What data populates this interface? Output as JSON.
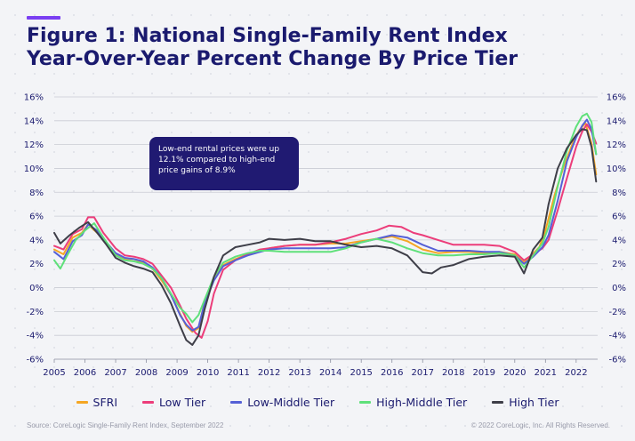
{
  "header": {
    "title_line1": "Figure 1: National Single-Family Rent Index",
    "title_line2": "Year-Over-Year Percent Change By Price Tier"
  },
  "annotation": {
    "text": "Low-end rental prices were up 12.1% compared to high-end price gains of 8.9%"
  },
  "footer": {
    "source": "Source: CoreLogic Single-Family Rent Index, September 2022",
    "copyright": "© 2022 CoreLogic, Inc. All Rights Reserved."
  },
  "colors": {
    "title": "#1a1a6e",
    "accent": "#7a3ff2",
    "annotation_bg": "#201a72",
    "SFRI": "#f5a623",
    "Low Tier": "#ec3d7a",
    "Low-Middle Tier": "#5560d6",
    "High-Middle Tier": "#5fe07a",
    "High Tier": "#3e3e48"
  },
  "chart_data": {
    "type": "line",
    "title": "Figure 1: National Single-Family Rent Index Year-Over-Year Percent Change By Price Tier",
    "xlabel": "",
    "ylabel": "",
    "xlim": [
      2005,
      2022.7
    ],
    "ylim": [
      -6,
      16
    ],
    "y_ticks": [
      "-6%",
      "-4%",
      "-2%",
      "0%",
      "2%",
      "4%",
      "6%",
      "8%",
      "10%",
      "12%",
      "14%",
      "16%"
    ],
    "x_ticks": [
      "2005",
      "2006",
      "2007",
      "2008",
      "2009",
      "2010",
      "2011",
      "2012",
      "2013",
      "2014",
      "2015",
      "2016",
      "2017",
      "2018",
      "2019",
      "2020",
      "2021",
      "2022"
    ],
    "grid": "horizontal",
    "legend_position": "bottom",
    "series": [
      {
        "name": "SFRI",
        "points": [
          [
            2005,
            3.2
          ],
          [
            2005.3,
            2.8
          ],
          [
            2005.6,
            4.2
          ],
          [
            2005.9,
            4.6
          ],
          [
            2006.1,
            5.3
          ],
          [
            2006.4,
            4.6
          ],
          [
            2006.7,
            3.8
          ],
          [
            2007,
            2.8
          ],
          [
            2007.3,
            2.4
          ],
          [
            2007.6,
            2.4
          ],
          [
            2007.9,
            2.1
          ],
          [
            2008.2,
            1.6
          ],
          [
            2008.5,
            0.6
          ],
          [
            2008.8,
            -0.6
          ],
          [
            2009.1,
            -2.2
          ],
          [
            2009.3,
            -3.2
          ],
          [
            2009.5,
            -3.7
          ],
          [
            2009.7,
            -3.4
          ],
          [
            2009.9,
            -1.2
          ],
          [
            2010.2,
            0.9
          ],
          [
            2010.5,
            1.9
          ],
          [
            2010.9,
            2.4
          ],
          [
            2011.3,
            2.8
          ],
          [
            2011.7,
            3.1
          ],
          [
            2012,
            3.3
          ],
          [
            2012.5,
            3.5
          ],
          [
            2013,
            3.6
          ],
          [
            2013.5,
            3.6
          ],
          [
            2014,
            3.7
          ],
          [
            2014.5,
            3.7
          ],
          [
            2015,
            3.9
          ],
          [
            2015.5,
            4.1
          ],
          [
            2016,
            4.3
          ],
          [
            2016.5,
            3.9
          ],
          [
            2017,
            3.2
          ],
          [
            2017.5,
            2.9
          ],
          [
            2018,
            3
          ],
          [
            2018.5,
            3
          ],
          [
            2019,
            2.9
          ],
          [
            2019.5,
            3
          ],
          [
            2020,
            2.8
          ],
          [
            2020.3,
            2.1
          ],
          [
            2020.5,
            2.6
          ],
          [
            2020.8,
            3.4
          ],
          [
            2021,
            4.8
          ],
          [
            2021.3,
            7.8
          ],
          [
            2021.6,
            10.2
          ],
          [
            2021.9,
            12.2
          ],
          [
            2022.1,
            13.2
          ],
          [
            2022.3,
            13.8
          ],
          [
            2022.5,
            12.1
          ],
          [
            2022.65,
            9.5
          ]
        ]
      },
      {
        "name": "Low Tier",
        "points": [
          [
            2005,
            3.5
          ],
          [
            2005.3,
            3.2
          ],
          [
            2005.6,
            4.5
          ],
          [
            2005.9,
            4.9
          ],
          [
            2006.1,
            5.9
          ],
          [
            2006.3,
            5.9
          ],
          [
            2006.6,
            4.6
          ],
          [
            2007,
            3.3
          ],
          [
            2007.3,
            2.7
          ],
          [
            2007.6,
            2.6
          ],
          [
            2007.9,
            2.4
          ],
          [
            2008.2,
            2
          ],
          [
            2008.5,
            1
          ],
          [
            2008.8,
            0
          ],
          [
            2009.1,
            -1.5
          ],
          [
            2009.3,
            -2.6
          ],
          [
            2009.6,
            -3.8
          ],
          [
            2009.8,
            -4.2
          ],
          [
            2010,
            -2.8
          ],
          [
            2010.2,
            -0.5
          ],
          [
            2010.5,
            1.5
          ],
          [
            2010.9,
            2.3
          ],
          [
            2011.3,
            2.8
          ],
          [
            2011.7,
            3.2
          ],
          [
            2012,
            3.3
          ],
          [
            2012.5,
            3.5
          ],
          [
            2013,
            3.6
          ],
          [
            2013.5,
            3.6
          ],
          [
            2014,
            3.8
          ],
          [
            2014.5,
            4.1
          ],
          [
            2015,
            4.5
          ],
          [
            2015.5,
            4.8
          ],
          [
            2015.9,
            5.2
          ],
          [
            2016.3,
            5.1
          ],
          [
            2016.7,
            4.6
          ],
          [
            2017,
            4.4
          ],
          [
            2017.5,
            4
          ],
          [
            2018,
            3.6
          ],
          [
            2018.5,
            3.6
          ],
          [
            2019,
            3.6
          ],
          [
            2019.5,
            3.5
          ],
          [
            2020,
            3
          ],
          [
            2020.3,
            2.3
          ],
          [
            2020.6,
            2.8
          ],
          [
            2020.9,
            3.3
          ],
          [
            2021.1,
            4
          ],
          [
            2021.4,
            6.5
          ],
          [
            2021.7,
            9.2
          ],
          [
            2022,
            11.8
          ],
          [
            2022.2,
            13.1
          ],
          [
            2022.35,
            13.7
          ],
          [
            2022.5,
            13.1
          ],
          [
            2022.65,
            12.1
          ]
        ]
      },
      {
        "name": "Low-Middle Tier",
        "points": [
          [
            2005,
            3
          ],
          [
            2005.3,
            2.4
          ],
          [
            2005.6,
            3.9
          ],
          [
            2005.9,
            4.4
          ],
          [
            2006.1,
            5.3
          ],
          [
            2006.4,
            4.8
          ],
          [
            2006.7,
            3.8
          ],
          [
            2007,
            2.9
          ],
          [
            2007.3,
            2.5
          ],
          [
            2007.6,
            2.4
          ],
          [
            2007.9,
            2.2
          ],
          [
            2008.2,
            1.7
          ],
          [
            2008.5,
            0.8
          ],
          [
            2008.8,
            -0.6
          ],
          [
            2009.1,
            -2.3
          ],
          [
            2009.3,
            -3.1
          ],
          [
            2009.5,
            -3.6
          ],
          [
            2009.7,
            -3.3
          ],
          [
            2009.9,
            -1.3
          ],
          [
            2010.2,
            0.6
          ],
          [
            2010.5,
            1.8
          ],
          [
            2010.9,
            2.3
          ],
          [
            2011.3,
            2.7
          ],
          [
            2011.7,
            3
          ],
          [
            2012,
            3.2
          ],
          [
            2012.5,
            3.3
          ],
          [
            2013,
            3.3
          ],
          [
            2013.5,
            3.3
          ],
          [
            2014,
            3.3
          ],
          [
            2014.5,
            3.4
          ],
          [
            2015,
            3.8
          ],
          [
            2015.5,
            4.1
          ],
          [
            2016,
            4.4
          ],
          [
            2016.5,
            4.2
          ],
          [
            2017,
            3.6
          ],
          [
            2017.5,
            3.1
          ],
          [
            2018,
            3.1
          ],
          [
            2018.5,
            3.1
          ],
          [
            2019,
            3
          ],
          [
            2019.5,
            3
          ],
          [
            2020,
            2.7
          ],
          [
            2020.3,
            2
          ],
          [
            2020.6,
            2.6
          ],
          [
            2020.9,
            3.4
          ],
          [
            2021.1,
            4.4
          ],
          [
            2021.4,
            7.3
          ],
          [
            2021.7,
            10.6
          ],
          [
            2022,
            12.6
          ],
          [
            2022.2,
            13.6
          ],
          [
            2022.35,
            14.1
          ],
          [
            2022.5,
            13.3
          ],
          [
            2022.65,
            11.2
          ]
        ]
      },
      {
        "name": "High-Middle Tier",
        "points": [
          [
            2005,
            2.3
          ],
          [
            2005.2,
            1.6
          ],
          [
            2005.4,
            2.6
          ],
          [
            2005.7,
            4
          ],
          [
            2006,
            4.8
          ],
          [
            2006.3,
            5.4
          ],
          [
            2006.6,
            4.2
          ],
          [
            2007,
            2.7
          ],
          [
            2007.3,
            2.3
          ],
          [
            2007.6,
            2.2
          ],
          [
            2007.9,
            2
          ],
          [
            2008.2,
            1.6
          ],
          [
            2008.5,
            0.8
          ],
          [
            2008.8,
            -0.5
          ],
          [
            2009.1,
            -1.7
          ],
          [
            2009.3,
            -2.2
          ],
          [
            2009.5,
            -2.9
          ],
          [
            2009.7,
            -2.3
          ],
          [
            2009.9,
            -1
          ],
          [
            2010.2,
            0.9
          ],
          [
            2010.5,
            2.1
          ],
          [
            2010.9,
            2.6
          ],
          [
            2011.3,
            2.9
          ],
          [
            2011.7,
            3.1
          ],
          [
            2012,
            3.1
          ],
          [
            2012.5,
            3
          ],
          [
            2013,
            3
          ],
          [
            2013.5,
            3
          ],
          [
            2014,
            3
          ],
          [
            2014.5,
            3.3
          ],
          [
            2015,
            3.8
          ],
          [
            2015.5,
            4.1
          ],
          [
            2016,
            3.8
          ],
          [
            2016.5,
            3.3
          ],
          [
            2017,
            2.9
          ],
          [
            2017.5,
            2.7
          ],
          [
            2018,
            2.7
          ],
          [
            2018.5,
            2.8
          ],
          [
            2019,
            2.8
          ],
          [
            2019.5,
            2.9
          ],
          [
            2020,
            2.7
          ],
          [
            2020.3,
            1.7
          ],
          [
            2020.6,
            2.7
          ],
          [
            2020.9,
            3.7
          ],
          [
            2021.1,
            5.1
          ],
          [
            2021.4,
            8.5
          ],
          [
            2021.7,
            11.5
          ],
          [
            2022,
            13.5
          ],
          [
            2022.2,
            14.4
          ],
          [
            2022.35,
            14.6
          ],
          [
            2022.5,
            13.9
          ],
          [
            2022.65,
            11.2
          ]
        ]
      },
      {
        "name": "High Tier",
        "points": [
          [
            2005,
            4.6
          ],
          [
            2005.2,
            3.7
          ],
          [
            2005.5,
            4.4
          ],
          [
            2005.8,
            5
          ],
          [
            2006.1,
            5.5
          ],
          [
            2006.4,
            4.6
          ],
          [
            2006.7,
            3.6
          ],
          [
            2007,
            2.5
          ],
          [
            2007.3,
            2.1
          ],
          [
            2007.6,
            1.8
          ],
          [
            2007.9,
            1.6
          ],
          [
            2008.2,
            1.3
          ],
          [
            2008.5,
            0.2
          ],
          [
            2008.8,
            -1.3
          ],
          [
            2009.1,
            -3.2
          ],
          [
            2009.3,
            -4.4
          ],
          [
            2009.5,
            -4.8
          ],
          [
            2009.7,
            -4
          ],
          [
            2009.9,
            -1.8
          ],
          [
            2010.2,
            0.9
          ],
          [
            2010.5,
            2.7
          ],
          [
            2010.9,
            3.4
          ],
          [
            2011.3,
            3.6
          ],
          [
            2011.7,
            3.8
          ],
          [
            2012,
            4.1
          ],
          [
            2012.5,
            4
          ],
          [
            2013,
            4.1
          ],
          [
            2013.5,
            3.9
          ],
          [
            2014,
            3.9
          ],
          [
            2014.5,
            3.6
          ],
          [
            2015,
            3.4
          ],
          [
            2015.5,
            3.5
          ],
          [
            2016,
            3.3
          ],
          [
            2016.5,
            2.7
          ],
          [
            2017,
            1.3
          ],
          [
            2017.3,
            1.2
          ],
          [
            2017.6,
            1.7
          ],
          [
            2018,
            1.9
          ],
          [
            2018.5,
            2.4
          ],
          [
            2019,
            2.6
          ],
          [
            2019.5,
            2.7
          ],
          [
            2020,
            2.6
          ],
          [
            2020.3,
            1.2
          ],
          [
            2020.6,
            3.2
          ],
          [
            2020.9,
            4.2
          ],
          [
            2021.1,
            7
          ],
          [
            2021.4,
            10
          ],
          [
            2021.7,
            11.7
          ],
          [
            2022,
            12.8
          ],
          [
            2022.2,
            13.3
          ],
          [
            2022.35,
            13.2
          ],
          [
            2022.5,
            11.8
          ],
          [
            2022.65,
            8.9
          ]
        ]
      }
    ]
  }
}
